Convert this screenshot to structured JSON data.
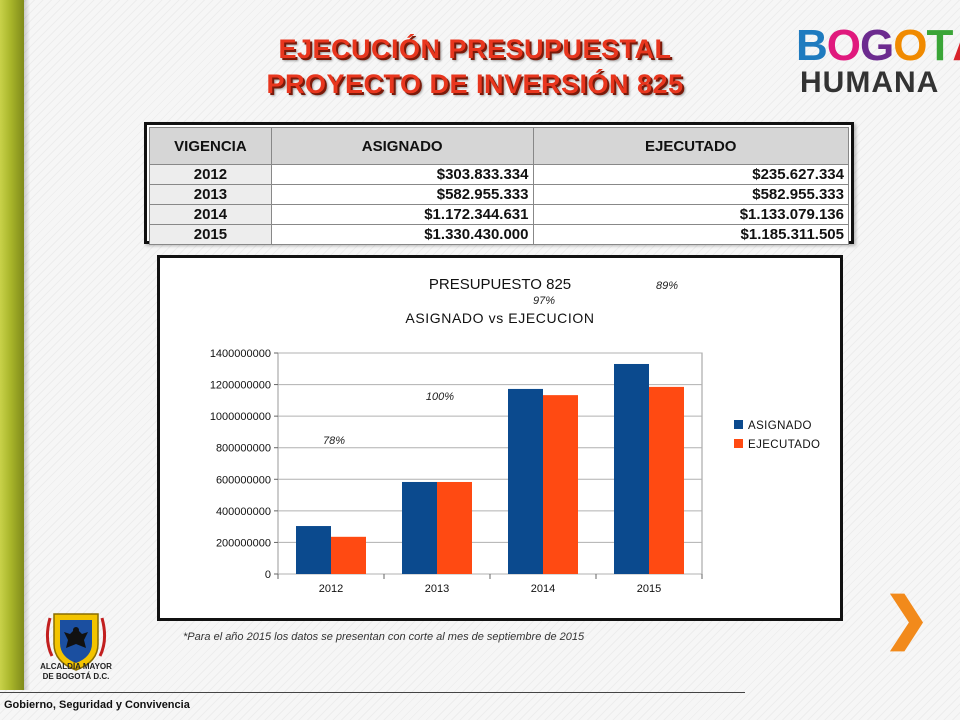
{
  "header": {
    "title_line1": "EJECUCIÓN PRESUPUESTAL",
    "title_line2": "PROYECTO DE INVERSIÓN 825"
  },
  "logo": {
    "word1_letters": [
      "B",
      "O",
      "G",
      "O",
      "T",
      "Á"
    ],
    "word2": "HUMANA",
    "colors": [
      "#1f7bbf",
      "#e0197d",
      "#6c2b8f",
      "#f08a00",
      "#3aa537",
      "#d8232a"
    ]
  },
  "table": {
    "headers": [
      "VIGENCIA",
      "ASIGNADO",
      "EJECUTADO"
    ],
    "rows": [
      {
        "year": "2012",
        "asignado": "$303.833.334",
        "ejecutado": "$235.627.334"
      },
      {
        "year": "2013",
        "asignado": "$582.955.333",
        "ejecutado": "$582.955.333"
      },
      {
        "year": "2014",
        "asignado": "$1.172.344.631",
        "ejecutado": "$1.133.079.136"
      },
      {
        "year": "2015",
        "asignado": "$1.330.430.000",
        "ejecutado": "$1.185.311.505"
      }
    ]
  },
  "chart_data": {
    "type": "bar",
    "title": "PRESUPUESTO 825",
    "subtitle": "ASIGNADO vs EJECUCION",
    "categories": [
      "2012",
      "2013",
      "2014",
      "2015"
    ],
    "series": [
      {
        "name": "ASIGNADO",
        "color": "#0b4a8e",
        "values": [
          303833334,
          582955333,
          1172344631,
          1330430000
        ]
      },
      {
        "name": "EJECUTADO",
        "color": "#ff4a12",
        "values": [
          235627334,
          582955333,
          1133079136,
          1185311505
        ]
      }
    ],
    "ylim": [
      0,
      1400000000
    ],
    "yticks": [
      "0",
      "200000000",
      "400000000",
      "600000000",
      "800000000",
      "1000000000",
      "1200000000",
      "1400000000"
    ],
    "annotations": [
      "78%",
      "100%",
      "97%",
      "89%"
    ],
    "legend": "right",
    "grid": true
  },
  "footnote": "*Para el año 2015 los datos se presentan con corte al mes de septiembre de 2015",
  "crest": {
    "line1": "ALCALDÍA MAYOR",
    "line2": "DE BOGOTÁ D.C."
  },
  "footer": "Gobierno, Seguridad y Convivencia",
  "nav": {
    "next_symbol": "❯"
  }
}
